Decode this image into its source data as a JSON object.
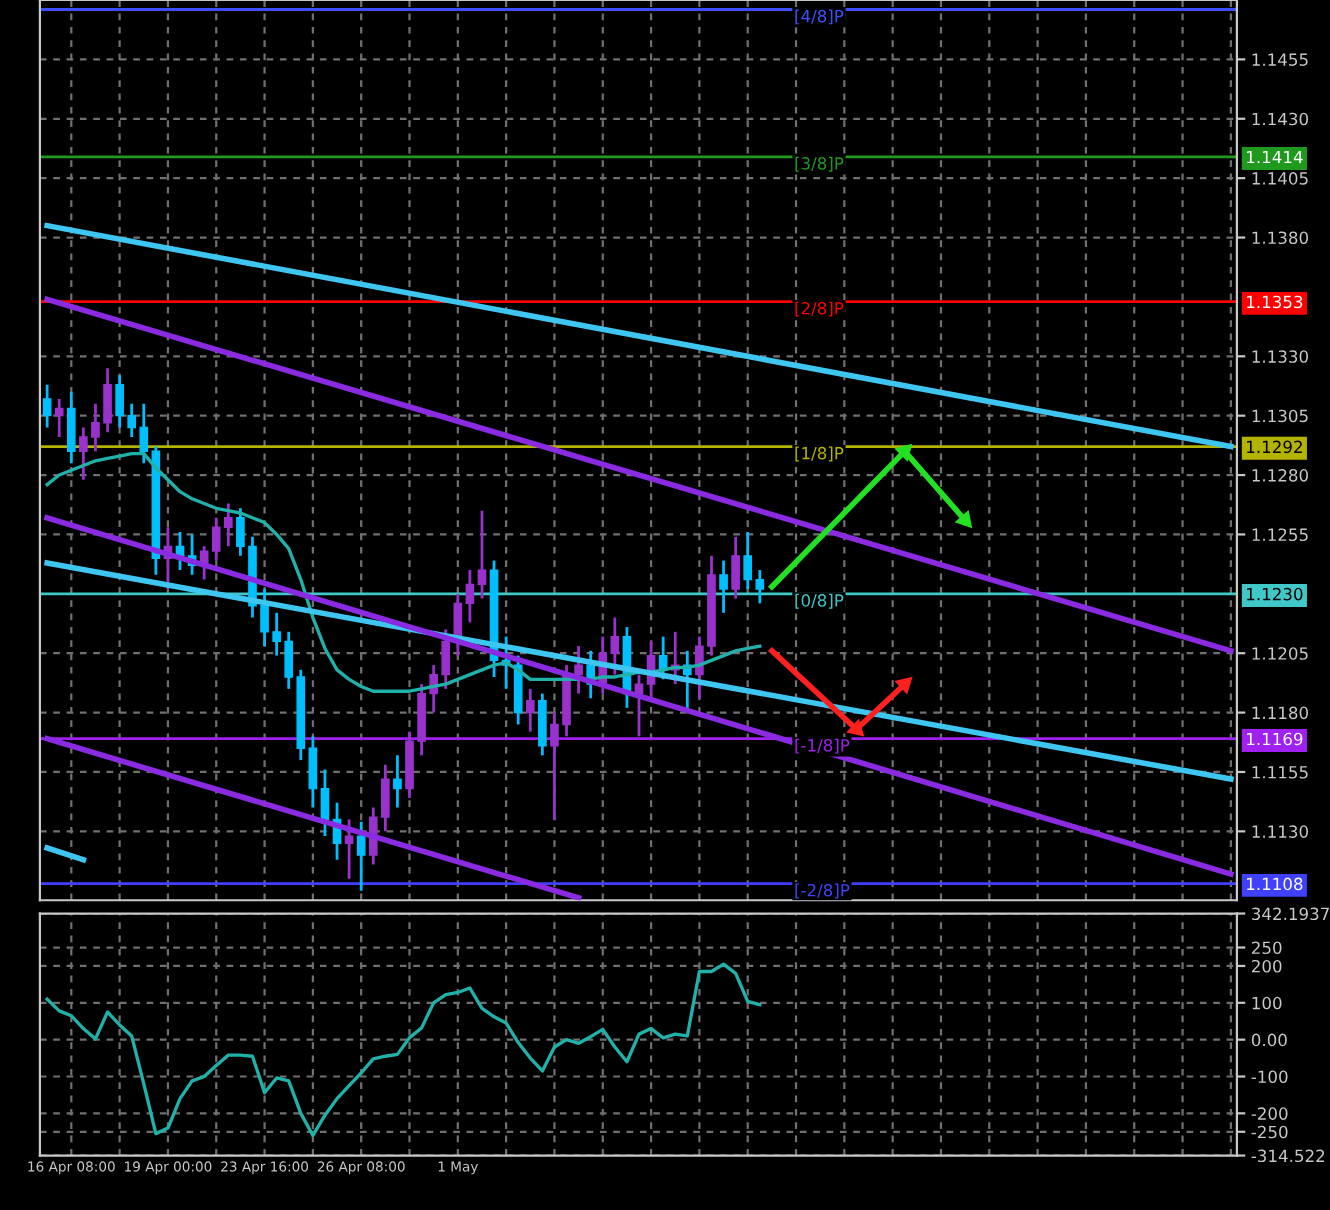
{
  "chart_data": [
    {
      "type": "candlestick",
      "categories": [
        null,
        null,
        null,
        null,
        null,
        null,
        null,
        null,
        null,
        null,
        null,
        null,
        null,
        null,
        null,
        null,
        null,
        null,
        null,
        null,
        null,
        null,
        null,
        null,
        null,
        null,
        null,
        null,
        null,
        null,
        null,
        null,
        null,
        null,
        null,
        null,
        null,
        null,
        null,
        null,
        null,
        null,
        null,
        null,
        null,
        null,
        null,
        null,
        null,
        null,
        null,
        null,
        null,
        null,
        null,
        null,
        null,
        null,
        null,
        null,
        null,
        null,
        null,
        null,
        null,
        null,
        null,
        null,
        null,
        null,
        null,
        null,
        null,
        null,
        null,
        null,
        null,
        null,
        null,
        null,
        null,
        null,
        null,
        null,
        null,
        null,
        null,
        null,
        null,
        null,
        null,
        null,
        null,
        null,
        null,
        null,
        null,
        null,
        null
      ],
      "ohlc": [
        [
          1.1312,
          1.1318,
          1.13,
          1.1305
        ],
        [
          1.1305,
          1.1312,
          1.1296,
          1.1308
        ],
        [
          1.1308,
          1.1315,
          1.1285,
          1.129
        ],
        [
          1.129,
          1.13,
          1.1278,
          1.1296
        ],
        [
          1.1296,
          1.131,
          1.129,
          1.1302
        ],
        [
          1.1302,
          1.1325,
          1.1298,
          1.1318
        ],
        [
          1.1318,
          1.1322,
          1.13,
          1.1305
        ],
        [
          1.1305,
          1.131,
          1.1296,
          1.13
        ],
        [
          1.13,
          1.131,
          1.1285,
          1.129
        ],
        [
          1.129,
          1.1292,
          1.1238,
          1.1245
        ],
        [
          1.1245,
          1.1258,
          1.1232,
          1.125
        ],
        [
          1.125,
          1.1256,
          1.124,
          1.1246
        ],
        [
          1.1246,
          1.1255,
          1.1238,
          1.1242
        ],
        [
          1.1242,
          1.125,
          1.1236,
          1.1248
        ],
        [
          1.1248,
          1.1262,
          1.1244,
          1.1258
        ],
        [
          1.1258,
          1.1268,
          1.125,
          1.1262
        ],
        [
          1.1262,
          1.1266,
          1.1246,
          1.125
        ],
        [
          1.125,
          1.1254,
          1.122,
          1.1225
        ],
        [
          1.1225,
          1.1232,
          1.1208,
          1.1214
        ],
        [
          1.1214,
          1.1222,
          1.1204,
          1.121
        ],
        [
          1.121,
          1.1214,
          1.119,
          1.1195
        ],
        [
          1.1195,
          1.1198,
          1.116,
          1.1165
        ],
        [
          1.1165,
          1.117,
          1.114,
          1.1148
        ],
        [
          1.1148,
          1.1156,
          1.1128,
          1.1135
        ],
        [
          1.1135,
          1.1142,
          1.1118,
          1.1125
        ],
        [
          1.1125,
          1.1135,
          1.111,
          1.1128
        ],
        [
          1.1128,
          1.1134,
          1.1105,
          1.112
        ],
        [
          1.112,
          1.114,
          1.1116,
          1.1136
        ],
        [
          1.1136,
          1.1158,
          1.113,
          1.1152
        ],
        [
          1.1152,
          1.1162,
          1.114,
          1.1148
        ],
        [
          1.1148,
          1.1172,
          1.1144,
          1.1168
        ],
        [
          1.1168,
          1.1192,
          1.1162,
          1.1188
        ],
        [
          1.1188,
          1.12,
          1.118,
          1.1196
        ],
        [
          1.1196,
          1.1215,
          1.119,
          1.121
        ],
        [
          1.121,
          1.123,
          1.1204,
          1.1226
        ],
        [
          1.1226,
          1.124,
          1.1218,
          1.1234
        ],
        [
          1.1234,
          1.1265,
          1.1228,
          1.124
        ],
        [
          1.124,
          1.1244,
          1.1195,
          1.1202
        ],
        [
          1.1202,
          1.1212,
          1.119,
          1.12
        ],
        [
          1.12,
          1.1204,
          1.1175,
          1.118
        ],
        [
          1.118,
          1.119,
          1.1172,
          1.1185
        ],
        [
          1.1185,
          1.1188,
          1.1162,
          1.1166
        ],
        [
          1.1166,
          1.118,
          1.1135,
          1.1175
        ],
        [
          1.1175,
          1.12,
          1.117,
          1.1196
        ],
        [
          1.1196,
          1.1208,
          1.1188,
          1.12
        ],
        [
          1.12,
          1.1206,
          1.1186,
          1.1192
        ],
        [
          1.1192,
          1.1212,
          1.1188,
          1.1205
        ],
        [
          1.1205,
          1.122,
          1.1196,
          1.1212
        ],
        [
          1.1212,
          1.1216,
          1.1182,
          1.1188
        ],
        [
          1.1188,
          1.1196,
          1.117,
          1.1192
        ],
        [
          1.1192,
          1.121,
          1.1186,
          1.1204
        ],
        [
          1.1204,
          1.1212,
          1.1194,
          1.1198
        ],
        [
          1.1198,
          1.1214,
          1.1192,
          1.12
        ],
        [
          1.12,
          1.1206,
          1.118,
          1.1196
        ],
        [
          1.1196,
          1.1212,
          1.1186,
          1.1208
        ],
        [
          1.1208,
          1.1246,
          1.1204,
          1.1238
        ],
        [
          1.1238,
          1.1244,
          1.1222,
          1.1232
        ],
        [
          1.1232,
          1.1254,
          1.1228,
          1.1246
        ],
        [
          1.1246,
          1.1256,
          1.1232,
          1.1236
        ],
        [
          1.1236,
          1.124,
          1.1226,
          1.1232
        ],
        null,
        null,
        null,
        null,
        null,
        null,
        null,
        null,
        null,
        null,
        null,
        null,
        null,
        null,
        null,
        null,
        null,
        null,
        null,
        null,
        null,
        null,
        null,
        null,
        null,
        null,
        null,
        null,
        null,
        null,
        null,
        null,
        null,
        null,
        null,
        null,
        null,
        null,
        null
      ],
      "colors": [
        "#00bfff",
        "#9932cc",
        "#00bfff",
        "#9932cc",
        "#9932cc",
        "#9932cc",
        "#00bfff",
        "#00bfff",
        "#00bfff",
        "#00bfff",
        "#9932cc",
        "#00bfff",
        "#00bfff",
        "#9932cc",
        "#9932cc",
        "#9932cc",
        "#00bfff",
        "#00bfff",
        "#00bfff",
        "#00bfff",
        "#00bfff",
        "#00bfff",
        "#00bfff",
        "#00bfff",
        "#00bfff",
        "#9932cc",
        "#00bfff",
        "#9932cc",
        "#9932cc",
        "#00bfff",
        "#9932cc",
        "#9932cc",
        "#9932cc",
        "#9932cc",
        "#9932cc",
        "#9932cc",
        "#9932cc",
        "#00bfff",
        "#00bfff",
        "#00bfff",
        "#9932cc",
        "#00bfff",
        "#9932cc",
        "#9932cc",
        "#9932cc",
        "#00bfff",
        "#9932cc",
        "#9932cc",
        "#00bfff",
        "#9932cc",
        "#9932cc",
        "#00bfff",
        "#9932cc",
        "#00bfff",
        "#9932cc",
        "#9932cc",
        "#00bfff",
        "#9932cc",
        "#00bfff",
        "#00bfff",
        null,
        null,
        null,
        null,
        null,
        null,
        null,
        null,
        null,
        null,
        null,
        null,
        null,
        null,
        null,
        null,
        null,
        null,
        null,
        null,
        null,
        null,
        null,
        null,
        null,
        null,
        null,
        null,
        null,
        null,
        null,
        null,
        null,
        null,
        null,
        null,
        null,
        null,
        null
      ],
      "series": [
        {
          "type": "line",
          "color": "#20b2aa",
          "values": [
            1.1276,
            1.128,
            1.1282,
            1.1284,
            1.1286,
            1.1287,
            1.1288,
            1.1289,
            1.1289,
            1.1283,
            1.1278,
            1.1273,
            1.127,
            1.1268,
            1.1266,
            1.1265,
            1.1264,
            1.1262,
            1.126,
            1.1255,
            1.1249,
            1.1236,
            1.122,
            1.1207,
            1.1198,
            1.1194,
            1.1191,
            1.1189,
            1.1189,
            1.1189,
            1.1189,
            1.119,
            1.1191,
            1.1192,
            1.1194,
            1.1196,
            1.1198,
            1.12,
            1.1201,
            1.1198,
            1.1194,
            1.1194,
            1.1194,
            1.1194,
            1.1194,
            1.1194,
            1.1195,
            1.1195,
            1.1196,
            1.1197,
            1.1197,
            1.1198,
            1.1199,
            1.1199,
            1.12,
            1.1202,
            1.1204,
            1.1206,
            1.1207,
            1.1208,
            null,
            null,
            null,
            null,
            null,
            null,
            null,
            null,
            null,
            null,
            null,
            null,
            null,
            null,
            null,
            null,
            null,
            null,
            null,
            null,
            null,
            null,
            null,
            null,
            null,
            null,
            null,
            null,
            null,
            null,
            null,
            null,
            null,
            null,
            null,
            null,
            null,
            null,
            null
          ]
        },
        {
          "type": "line",
          "color": "#3ec6f0",
          "values": [
            1.1385,
            null,
            null,
            null,
            null,
            null,
            null,
            null,
            null,
            null,
            null,
            null,
            null,
            null,
            null,
            null,
            null,
            null,
            null,
            null,
            null,
            null,
            null,
            null,
            null,
            null,
            null,
            null,
            null,
            null,
            null,
            null,
            null,
            null,
            null,
            null,
            null,
            null,
            null,
            null,
            null,
            null,
            null,
            null,
            null,
            null,
            null,
            null,
            null,
            null,
            null,
            null,
            null,
            null,
            null,
            null,
            null,
            null,
            null,
            null,
            null,
            null,
            null,
            null,
            null,
            null,
            null,
            null,
            null,
            null,
            null,
            null,
            null,
            null,
            null,
            null,
            null,
            null,
            null,
            null,
            null,
            null,
            null,
            null,
            null,
            null,
            null,
            null,
            null,
            null,
            null,
            null,
            null,
            null,
            null,
            null,
            null,
            null,
            1.1292
          ]
        },
        {
          "type": "line",
          "color": "#3ec6f0",
          "values": [
            1.1243,
            null,
            null,
            null,
            null,
            null,
            null,
            null,
            null,
            null,
            null,
            null,
            null,
            null,
            null,
            null,
            null,
            null,
            null,
            null,
            null,
            null,
            null,
            null,
            null,
            null,
            null,
            null,
            null,
            null,
            null,
            null,
            null,
            null,
            null,
            null,
            null,
            null,
            null,
            null,
            null,
            null,
            null,
            null,
            null,
            null,
            null,
            null,
            null,
            null,
            null,
            null,
            null,
            null,
            null,
            null,
            null,
            null,
            null,
            null,
            null,
            null,
            null,
            null,
            null,
            null,
            null,
            null,
            null,
            null,
            null,
            null,
            null,
            null,
            null,
            null,
            null,
            null,
            null,
            null,
            null,
            null,
            null,
            null,
            null,
            null,
            null,
            null,
            null,
            null,
            null,
            null,
            null,
            null,
            null,
            null,
            null,
            null,
            1.1152
          ]
        },
        {
          "type": "line",
          "color": "#3ec6f0",
          "values": [
            1.1123,
            null,
            null,
            1.1118,
            null,
            null,
            null,
            null,
            null,
            null,
            null,
            null,
            null,
            null,
            null,
            null,
            null,
            null,
            null,
            null,
            null,
            null,
            null,
            null,
            null,
            null,
            null,
            null,
            null,
            null,
            null,
            null,
            null,
            null,
            null,
            null,
            null,
            null,
            null,
            null,
            null,
            null,
            null,
            null,
            null,
            null,
            null,
            null,
            null,
            null,
            null,
            null,
            null,
            null,
            null,
            null,
            null,
            null,
            null,
            null,
            null,
            null,
            null,
            null,
            null,
            null,
            null,
            null,
            null,
            null,
            null,
            null,
            null,
            null,
            null,
            null,
            null,
            null,
            null,
            null,
            null,
            null,
            null,
            null,
            null,
            null,
            null,
            null,
            null,
            null,
            null,
            null,
            null,
            null,
            null,
            null,
            null,
            null,
            null
          ]
        },
        {
          "type": "line",
          "color": "#8a2be2",
          "values": [
            1.1354,
            null,
            null,
            null,
            null,
            null,
            null,
            null,
            null,
            null,
            null,
            null,
            null,
            null,
            null,
            null,
            null,
            null,
            null,
            null,
            null,
            null,
            null,
            null,
            null,
            null,
            null,
            null,
            null,
            null,
            null,
            null,
            null,
            null,
            null,
            null,
            null,
            null,
            null,
            null,
            null,
            null,
            null,
            null,
            null,
            null,
            null,
            null,
            null,
            null,
            null,
            null,
            null,
            null,
            null,
            null,
            null,
            null,
            null,
            null,
            null,
            null,
            null,
            null,
            null,
            null,
            null,
            null,
            null,
            null,
            null,
            null,
            null,
            null,
            null,
            null,
            null,
            null,
            null,
            null,
            null,
            null,
            null,
            null,
            null,
            null,
            null,
            null,
            null,
            null,
            null,
            null,
            null,
            null,
            null,
            null,
            null,
            null,
            1.1206
          ]
        },
        {
          "type": "line",
          "color": "#8a2be2",
          "values": [
            1.1262,
            null,
            null,
            null,
            null,
            null,
            null,
            null,
            null,
            null,
            null,
            null,
            null,
            null,
            null,
            null,
            null,
            null,
            null,
            null,
            null,
            null,
            null,
            null,
            null,
            null,
            null,
            null,
            null,
            null,
            null,
            null,
            null,
            null,
            null,
            null,
            null,
            null,
            null,
            null,
            null,
            null,
            null,
            null,
            null,
            null,
            null,
            null,
            null,
            null,
            null,
            null,
            null,
            null,
            null,
            null,
            null,
            null,
            null,
            null,
            null,
            null,
            null,
            null,
            null,
            null,
            null,
            null,
            null,
            null,
            null,
            null,
            null,
            null,
            null,
            null,
            null,
            null,
            null,
            null,
            null,
            null,
            null,
            null,
            null,
            null,
            null,
            null,
            null,
            null,
            null,
            null,
            null,
            null,
            null,
            null,
            null,
            null,
            1.1112
          ]
        },
        {
          "type": "line",
          "color": "#8a2be2",
          "values": [
            1.1169,
            null,
            null,
            null,
            null,
            null,
            null,
            null,
            null,
            null,
            null,
            null,
            null,
            null,
            null,
            null,
            null,
            null,
            null,
            null,
            null,
            null,
            null,
            null,
            null,
            null,
            null,
            null,
            null,
            null,
            null,
            null,
            null,
            null,
            null,
            null,
            null,
            null,
            null,
            null,
            null,
            null,
            null,
            null,
            1.1102,
            null,
            null,
            null,
            null,
            null,
            null,
            null,
            null,
            null,
            null,
            null,
            null,
            null,
            null,
            null,
            null,
            null,
            null,
            null,
            null,
            null,
            null,
            null,
            null,
            null,
            null,
            null,
            null,
            null,
            null,
            null,
            null,
            null,
            null,
            null,
            null,
            null,
            null,
            null,
            null,
            null,
            null,
            null,
            null,
            null,
            null,
            null,
            null,
            null,
            null,
            null,
            null,
            null,
            null
          ]
        },
        {
          "type": "line",
          "color": "#22e022",
          "marker": "triangle",
          "values": [
            null,
            null,
            null,
            null,
            null,
            null,
            null,
            null,
            null,
            null,
            null,
            null,
            null,
            null,
            null,
            null,
            null,
            null,
            null,
            null,
            null,
            null,
            null,
            null,
            null,
            null,
            null,
            null,
            null,
            null,
            null,
            null,
            null,
            null,
            null,
            null,
            null,
            null,
            null,
            null,
            null,
            null,
            null,
            null,
            null,
            null,
            null,
            null,
            null,
            null,
            null,
            null,
            null,
            null,
            null,
            null,
            null,
            null,
            null,
            null,
            1.1233,
            null,
            null,
            null,
            null,
            null,
            null,
            null,
            null,
            null,
            null,
            1.129,
            null,
            null,
            null,
            null,
            1.1261,
            null,
            null,
            null,
            null,
            null,
            null,
            null,
            null,
            null,
            null,
            null,
            null,
            null,
            null,
            null,
            null,
            null,
            null,
            null,
            null,
            null,
            null
          ]
        },
        {
          "type": "line",
          "color": "#ff2020",
          "marker": "triangle",
          "values": [
            null,
            null,
            null,
            null,
            null,
            null,
            null,
            null,
            null,
            null,
            null,
            null,
            null,
            null,
            null,
            null,
            null,
            null,
            null,
            null,
            null,
            null,
            null,
            null,
            null,
            null,
            null,
            null,
            null,
            null,
            null,
            null,
            null,
            null,
            null,
            null,
            null,
            null,
            null,
            null,
            null,
            null,
            null,
            null,
            null,
            null,
            null,
            null,
            null,
            null,
            null,
            null,
            null,
            null,
            null,
            null,
            null,
            null,
            null,
            null,
            1.1206,
            null,
            null,
            null,
            null,
            null,
            null,
            1.1173,
            null,
            null,
            null,
            1.1192,
            null,
            null,
            null,
            null,
            null,
            null,
            null,
            null,
            null,
            null,
            null,
            null,
            null,
            null,
            null,
            null,
            null,
            null,
            null,
            null,
            null,
            null,
            null,
            null,
            null,
            null,
            null
          ]
        }
      ],
      "ref_lines": [
        {
          "axis": "y",
          "value": 1.1476,
          "label": "[4/8]P",
          "color": "#3c50ff"
        },
        {
          "axis": "y",
          "value": 1.1414,
          "label": "[3/8]P",
          "color": "#1f9a1f"
        },
        {
          "axis": "y",
          "value": 1.1353,
          "label": "[2/8]P",
          "color": "#ff0000"
        },
        {
          "axis": "y",
          "value": 1.1292,
          "label": "[1/8]P",
          "color": "#b4b400"
        },
        {
          "axis": "y",
          "value": 1.123,
          "label": "[0/8]P",
          "color": "#40c8c8"
        },
        {
          "axis": "y",
          "value": 1.1169,
          "label": "[-1/8]P",
          "color": "#a020f0"
        },
        {
          "axis": "y",
          "value": 1.1108,
          "label": "[-2/8]P",
          "color": "#4040ff"
        }
      ],
      "ylim": [
        1.1101,
        1.148
      ],
      "yticks": [
        1.1455,
        {
          "value": 1.143,
          "label": "1.1430"
        },
        1.1405,
        {
          "value": 1.138,
          "label": "1.1380"
        },
        {
          "value": 1.133,
          "label": "1.1330"
        },
        1.1305,
        {
          "value": 1.128,
          "label": "1.1280"
        },
        1.1255,
        1.1205,
        {
          "value": 1.118,
          "label": "1.1180"
        },
        1.1155,
        {
          "value": 1.113,
          "label": "1.1130"
        }
      ],
      "y2lim": [
        1.1101,
        1.148
      ],
      "y2ticks": [
        1.1414,
        1.1353,
        1.1292,
        {
          "value": 1.123,
          "label": "1.1230"
        },
        1.1169,
        1.1108
      ],
      "tick_labels": "y",
      "grid": true
    },
    {
      "type": "line",
      "categories": [
        null,
        null,
        "16 Apr 08:00",
        null,
        null,
        null,
        null,
        null,
        null,
        null,
        "19 Apr 00:00",
        null,
        null,
        null,
        null,
        null,
        null,
        null,
        "23 Apr 16:00",
        null,
        null,
        null,
        null,
        null,
        null,
        null,
        "26 Apr 08:00",
        null,
        null,
        null,
        null,
        null,
        null,
        null,
        "1 May",
        null,
        null,
        null,
        null,
        null,
        null,
        null,
        null,
        null,
        null,
        null,
        null,
        null,
        null,
        null,
        null,
        null,
        null,
        null,
        null,
        null,
        null,
        null,
        null,
        null,
        null,
        null,
        null,
        null,
        null,
        null,
        null,
        null,
        null,
        null,
        null,
        null,
        null,
        null,
        null,
        null,
        null,
        null,
        null,
        null,
        null,
        null,
        null,
        null,
        null,
        null,
        null,
        null,
        null,
        null,
        null,
        null,
        null,
        null,
        null,
        null,
        null,
        null,
        null
      ],
      "series": [
        {
          "color": "#20b2aa",
          "values": [
            110,
            78,
            65,
            30,
            2,
            75,
            40,
            10,
            -120,
            -255,
            -240,
            -160,
            -112,
            -100,
            -70,
            -42,
            -42,
            -45,
            -144,
            -104,
            -112,
            -200,
            -260,
            -205,
            -160,
            -125,
            -90,
            -52,
            -45,
            -40,
            5,
            32,
            100,
            122,
            128,
            140,
            85,
            62,
            45,
            -8,
            -50,
            -85,
            -20,
            0,
            -10,
            8,
            28,
            -20,
            -60,
            15,
            30,
            5,
            15,
            10,
            185,
            185,
            205,
            180,
            104,
            95,
            null,
            null,
            null,
            null,
            null,
            null,
            null,
            null,
            null,
            null,
            null,
            null,
            null,
            null,
            null,
            null,
            null,
            null,
            null,
            null,
            null,
            null,
            null,
            null,
            null,
            null,
            null,
            null,
            null,
            null,
            null,
            null,
            null,
            null,
            null,
            null,
            null,
            null,
            null
          ]
        }
      ],
      "ylim": [
        -314.522,
        342.1937
      ],
      "yticks": [
        342.1937,
        250,
        200,
        100,
        {
          "value": 0,
          "label": "0.00"
        },
        -100,
        -200,
        -250,
        -314.522
      ],
      "grid": true
    }
  ]
}
